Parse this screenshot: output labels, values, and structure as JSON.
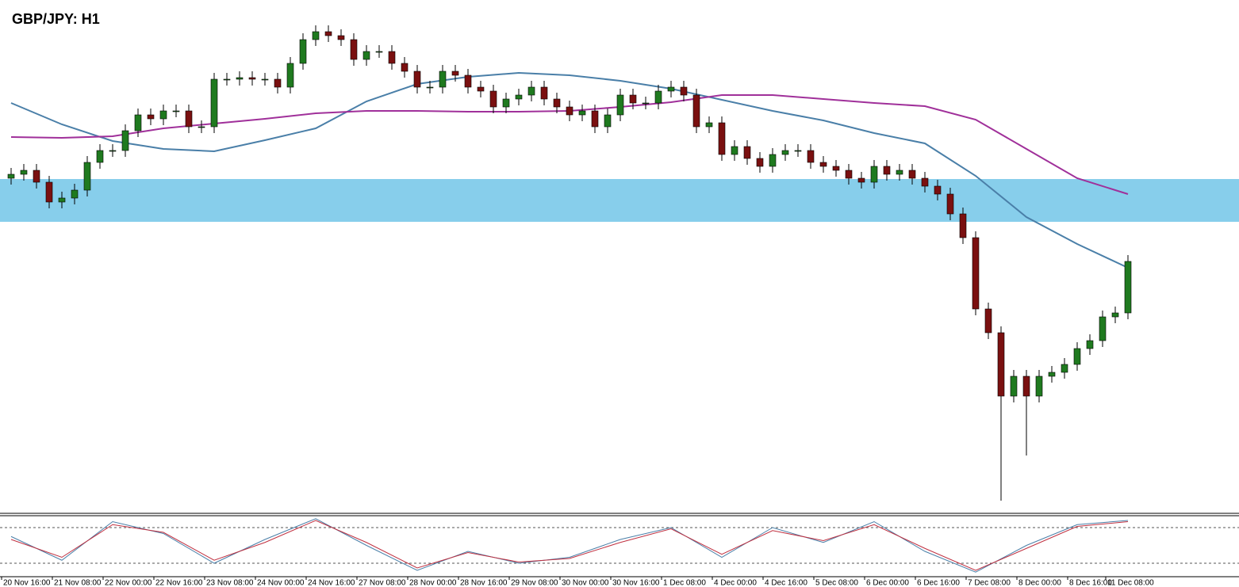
{
  "chart_data": {
    "type": "candlestick",
    "title": "GBP/JPY: H1",
    "categories": [
      null,
      "20 Nov 16:00",
      null,
      null,
      null,
      "21 Nov 08:00",
      null,
      null,
      null,
      "22 Nov 00:00",
      null,
      null,
      null,
      "22 Nov 16:00",
      null,
      null,
      null,
      "23 Nov 08:00",
      null,
      null,
      null,
      "24 Nov 00:00",
      null,
      null,
      null,
      "24 Nov 16:00",
      null,
      null,
      null,
      "27 Nov 08:00",
      null,
      null,
      null,
      "28 Nov 00:00",
      null,
      null,
      null,
      "28 Nov 16:00",
      null,
      null,
      null,
      "29 Nov 08:00",
      null,
      null,
      null,
      "30 Nov 00:00",
      null,
      null,
      null,
      "30 Nov 16:00",
      null,
      null,
      null,
      "1 Dec 08:00",
      null,
      null,
      null,
      "4 Dec 00:00",
      null,
      null,
      null,
      "4 Dec 16:00",
      null,
      null,
      null,
      "5 Dec 08:00",
      null,
      null,
      null,
      "6 Dec 00:00",
      null,
      null,
      null,
      "6 Dec 16:00",
      null,
      null,
      null,
      "7 Dec 08:00",
      null,
      null,
      null,
      "8 Dec 00:00",
      null,
      null,
      null,
      "8 Dec 16:00",
      null,
      null,
      "11 Dec 08:00"
    ],
    "open": [
      420,
      425,
      430,
      415,
      390,
      395,
      405,
      440,
      455,
      455,
      480,
      500,
      495,
      505,
      505,
      485,
      485,
      545,
      545,
      547,
      545,
      545,
      535,
      565,
      595,
      605,
      600,
      595,
      570,
      580,
      580,
      565,
      555,
      535,
      535,
      555,
      550,
      535,
      530,
      510,
      520,
      525,
      535,
      520,
      510,
      500,
      505,
      485,
      500,
      525,
      515,
      515,
      530,
      535,
      525,
      485,
      490,
      450,
      460,
      445,
      435,
      450,
      455,
      455,
      440,
      435,
      430,
      420,
      415,
      435,
      425,
      430,
      420,
      410,
      400,
      375,
      345,
      255,
      225,
      145,
      170,
      145,
      170,
      175,
      185,
      205,
      215,
      245,
      250
    ],
    "high": [
      433,
      438,
      438,
      423,
      403,
      413,
      448,
      463,
      463,
      488,
      508,
      508,
      513,
      513,
      513,
      493,
      553,
      553,
      555,
      555,
      553,
      553,
      573,
      603,
      613,
      613,
      608,
      603,
      588,
      588,
      588,
      573,
      563,
      543,
      563,
      563,
      558,
      543,
      538,
      528,
      533,
      543,
      543,
      528,
      518,
      513,
      513,
      508,
      533,
      533,
      523,
      538,
      543,
      543,
      533,
      498,
      498,
      468,
      468,
      453,
      458,
      463,
      463,
      463,
      448,
      443,
      438,
      428,
      443,
      443,
      438,
      438,
      428,
      418,
      408,
      383,
      353,
      263,
      233,
      178,
      178,
      178,
      183,
      193,
      213,
      223,
      253,
      258,
      323
    ],
    "low": [
      412,
      417,
      407,
      382,
      382,
      387,
      397,
      432,
      447,
      447,
      472,
      487,
      487,
      497,
      477,
      477,
      477,
      537,
      537,
      537,
      537,
      527,
      527,
      557,
      587,
      592,
      587,
      562,
      562,
      572,
      557,
      547,
      527,
      527,
      527,
      542,
      527,
      522,
      502,
      502,
      512,
      517,
      512,
      502,
      492,
      492,
      477,
      477,
      492,
      507,
      507,
      507,
      522,
      517,
      477,
      477,
      442,
      442,
      437,
      427,
      427,
      442,
      447,
      432,
      427,
      422,
      412,
      407,
      407,
      417,
      417,
      412,
      402,
      392,
      367,
      337,
      247,
      217,
      13,
      137,
      70,
      137,
      162,
      167,
      177,
      197,
      207,
      237,
      242
    ],
    "close": [
      425,
      430,
      415,
      390,
      395,
      405,
      440,
      455,
      455,
      480,
      500,
      495,
      505,
      505,
      485,
      485,
      545,
      545,
      547,
      545,
      545,
      535,
      565,
      595,
      605,
      600,
      595,
      570,
      580,
      580,
      565,
      555,
      535,
      535,
      555,
      550,
      535,
      530,
      510,
      520,
      525,
      535,
      520,
      510,
      500,
      505,
      485,
      500,
      525,
      515,
      515,
      530,
      535,
      525,
      485,
      490,
      450,
      460,
      445,
      435,
      450,
      455,
      455,
      440,
      435,
      430,
      420,
      415,
      435,
      425,
      430,
      420,
      410,
      400,
      375,
      345,
      255,
      225,
      145,
      170,
      145,
      170,
      175,
      185,
      205,
      215,
      245,
      250,
      315
    ],
    "up_color": "#1f7a1f",
    "down_color": "#7a1010",
    "ylim": [
      0,
      645
    ],
    "zone": {
      "from": 365,
      "to": 419,
      "color": "#87ceeb"
    },
    "series": [
      {
        "color": "#4a7fa8",
        "x": [
          0,
          4,
          8,
          12,
          16,
          20,
          24,
          28,
          32,
          36,
          40,
          44,
          48,
          52,
          56,
          60,
          64,
          68,
          72,
          76,
          80,
          84,
          88
        ],
        "values": [
          515,
          488,
          467,
          457,
          454,
          468,
          483,
          517,
          539,
          548,
          553,
          550,
          543,
          533,
          519,
          505,
          493,
          477,
          464,
          423,
          371,
          337,
          307
        ]
      },
      {
        "color": "#a0309a",
        "x": [
          0,
          4,
          8,
          12,
          16,
          20,
          24,
          28,
          32,
          36,
          40,
          44,
          48,
          52,
          56,
          60,
          64,
          68,
          72,
          76,
          80,
          84,
          88
        ],
        "values": [
          472,
          471,
          473,
          483,
          489,
          495,
          502,
          505,
          505,
          504,
          504,
          505,
          510,
          516,
          525,
          525,
          520,
          515,
          511,
          494,
          457,
          420,
          400
        ]
      }
    ],
    "oscillator": {
      "ylim": [
        0,
        100
      ],
      "levels": [
        20,
        80
      ],
      "series": [
        {
          "color": "#4a7fa8",
          "x": [
            0,
            4,
            8,
            12,
            16,
            20,
            24,
            28,
            32,
            36,
            40,
            44,
            48,
            52,
            56,
            60,
            64,
            68,
            72,
            76,
            80,
            84,
            88
          ],
          "values": [
            65,
            25,
            90,
            70,
            20,
            60,
            95,
            50,
            8,
            40,
            20,
            30,
            60,
            80,
            30,
            80,
            55,
            90,
            40,
            5,
            50,
            85,
            92
          ]
        },
        {
          "color": "#c03040",
          "x": [
            0,
            4,
            8,
            12,
            16,
            20,
            24,
            28,
            32,
            36,
            40,
            44,
            48,
            52,
            56,
            60,
            64,
            68,
            72,
            76,
            80,
            84,
            88
          ],
          "values": [
            60,
            30,
            85,
            72,
            25,
            55,
            92,
            55,
            12,
            38,
            22,
            28,
            55,
            78,
            35,
            75,
            58,
            85,
            45,
            8,
            45,
            82,
            90
          ]
        }
      ]
    }
  }
}
